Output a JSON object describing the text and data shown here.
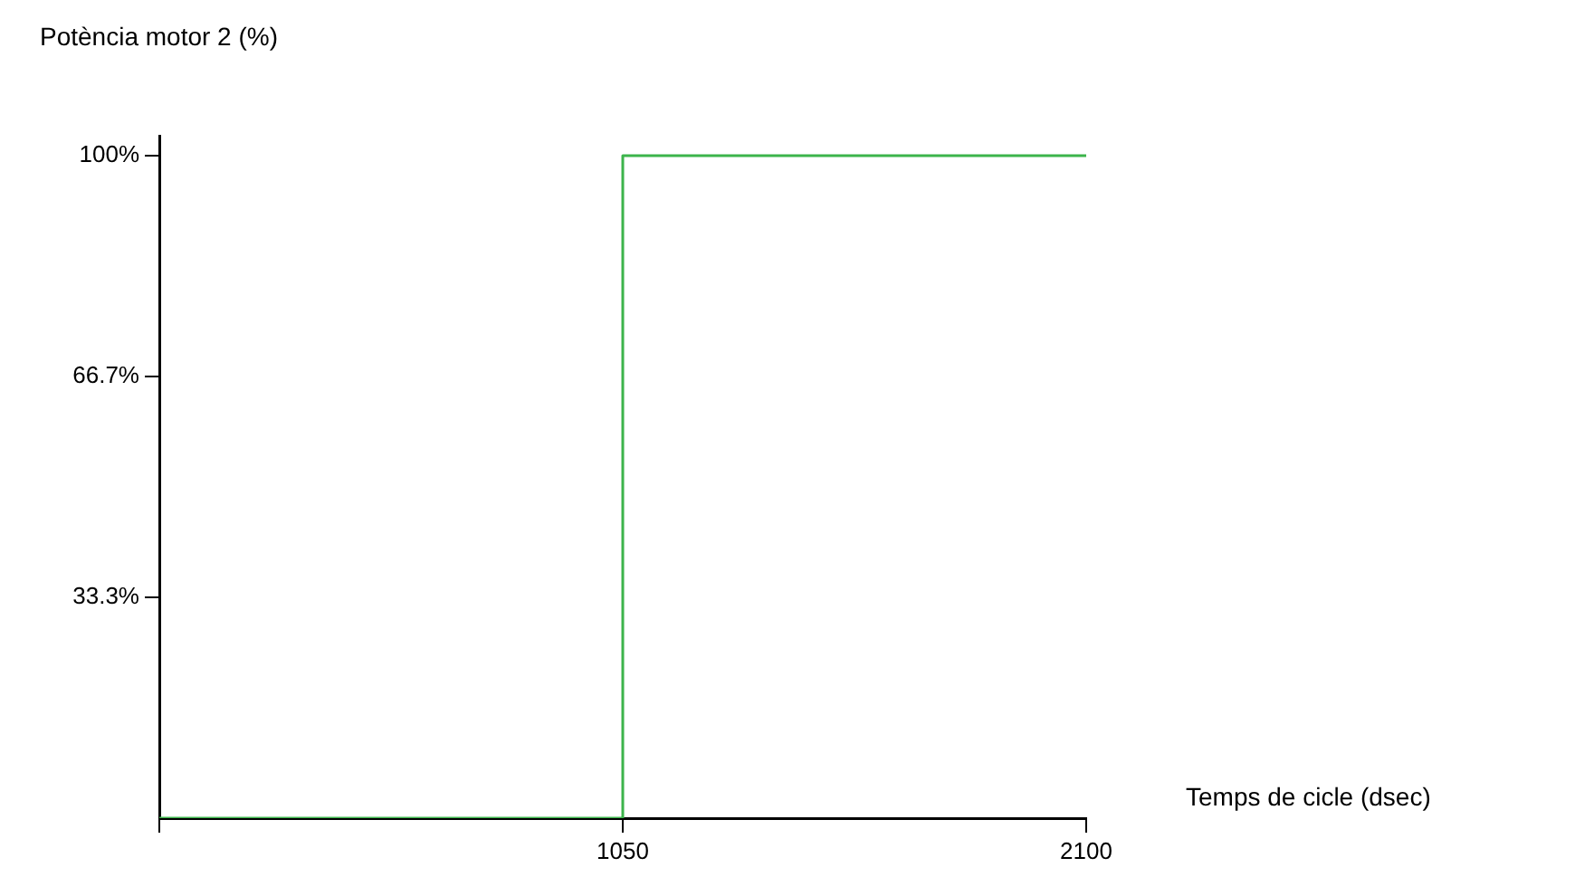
{
  "chart_data": {
    "type": "step",
    "ylabel": "Potència motor 2 (%)",
    "xlabel": "Temps de cicle (dsec)",
    "x": [
      0,
      1050,
      2100
    ],
    "series": [
      {
        "color": "#3cb44b",
        "values": [
          0,
          100,
          100
        ]
      }
    ],
    "xlim": [
      0,
      2100
    ],
    "xticks": [
      {
        "value": 0,
        "label": null
      },
      1050,
      2100
    ],
    "ylim": [
      0,
      103
    ],
    "yticks": [
      {
        "value": 33.3,
        "label": "33.3%"
      },
      {
        "value": 66.7,
        "label": "66.7%"
      },
      {
        "value": 100,
        "label": "100%"
      }
    ],
    "grid": false,
    "legend": false
  }
}
